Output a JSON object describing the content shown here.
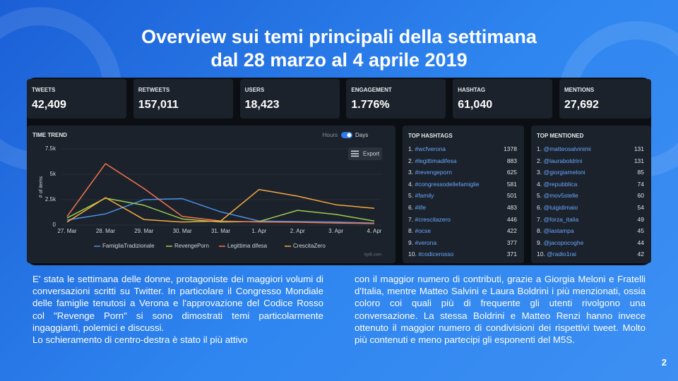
{
  "title": [
    "Overview sui temi principali della settimana",
    "dal 28 marzo  al 4 aprile 2019"
  ],
  "kpis": [
    {
      "label": "TWEETS",
      "value": "42,409"
    },
    {
      "label": "RETWEETS",
      "value": "157,011"
    },
    {
      "label": "USERS",
      "value": "18,423"
    },
    {
      "label": "ENGAGEMENT",
      "value": "1.776%"
    },
    {
      "label": "HASHTAG",
      "value": "61,040"
    },
    {
      "label": "MENTIONS",
      "value": "27,692"
    }
  ],
  "chart_data": {
    "type": "line",
    "title": "TIME TREND",
    "toggle": [
      "Hours",
      "Days"
    ],
    "export": "Export",
    "credit": "kpi6.com",
    "ylabel": "# of items",
    "categories": [
      "27. Mar",
      "28. Mar",
      "29. Mar",
      "30. Mar",
      "31. Mar",
      "1. Apr",
      "2. Apr",
      "3. Apr",
      "4. Apr"
    ],
    "ylim": [
      0,
      7500
    ],
    "yticks": [
      0,
      {
        "value": 2500,
        "label": "2.5k"
      },
      {
        "value": 5000,
        "label": "5k"
      },
      {
        "value": 7500,
        "label": "7.5k"
      }
    ],
    "series": [
      {
        "name": "FamigliaTradizionale",
        "color": "#4a8fe6",
        "values": [
          500,
          1100,
          2500,
          2600,
          1300,
          400,
          350,
          300,
          200
        ]
      },
      {
        "name": "RevengePorn",
        "color": "#9ccc50",
        "values": [
          700,
          2650,
          1950,
          600,
          300,
          350,
          1450,
          1050,
          400
        ]
      },
      {
        "name": "Legittima difesa",
        "color": "#f2744c",
        "values": [
          850,
          6050,
          3600,
          850,
          400,
          300,
          280,
          200,
          150
        ]
      },
      {
        "name": "CrescitaZero",
        "color": "#f5a942",
        "values": [
          300,
          2700,
          550,
          300,
          400,
          3500,
          2850,
          2000,
          1650
        ]
      }
    ]
  },
  "hashtags": {
    "title": "TOP HASHTAGS",
    "rows": [
      [
        "1.",
        "#wcfverona",
        1378
      ],
      [
        "2.",
        "#legittimadifesa",
        883
      ],
      [
        "3.",
        "#revengeporn",
        625
      ],
      [
        "4.",
        "#congressodellefamiglie",
        581
      ],
      [
        "5.",
        "#family",
        501
      ],
      [
        "6.",
        "#life",
        483
      ],
      [
        "7.",
        "#crescitazero",
        446
      ],
      [
        "8.",
        "#ocse",
        422
      ],
      [
        "9.",
        "#verona",
        377
      ],
      [
        "10.",
        "#codicerosso",
        371
      ]
    ]
  },
  "mentions": {
    "title": "TOP MENTIONED",
    "rows": [
      [
        "1.",
        "@matteosalvinimi",
        131
      ],
      [
        "2.",
        "@lauraboldrini",
        131
      ],
      [
        "3.",
        "@giorgiameloni",
        85
      ],
      [
        "4.",
        "@repubblica",
        74
      ],
      [
        "5.",
        "@mov5stelle",
        60
      ],
      [
        "6.",
        "@luigidimaio",
        54
      ],
      [
        "7.",
        "@forza_italia",
        49
      ],
      [
        "8.",
        "@lastampa",
        45
      ],
      [
        "9.",
        "@jacopocoghe",
        44
      ],
      [
        "10.",
        "@radio1rai",
        42
      ]
    ]
  },
  "body": {
    "left": [
      "E' stata le settimana delle donne, protagoniste dei maggiori volumi di conversazioni scritti su Twitter. In particolare il Congresso Mondiale delle famiglie tenutosi a Verona e l'approvazione del Codice Rosso col \"Revenge Porn\" si sono dimostrati temi particolarmente ingaggianti, polemici e discussi.",
      "Lo schieramento di centro-destra è stato il più attivo"
    ],
    "right": [
      "con il maggior numero di contributi, grazie a Giorgia Meloni e Fratelli d'Italia, mentre Matteo Salvini e Laura Boldrini i più menzionati, ossia coloro coi quali più di frequente gli utenti rivolgono una conversazione. La stessa Boldrini e Matteo Renzi hanno invece ottenuto il maggior numero di condivisioni dei rispettivi tweet. Molto più contenuti e meno partecipi gli esponenti del M5S."
    ]
  },
  "page_number": 2
}
